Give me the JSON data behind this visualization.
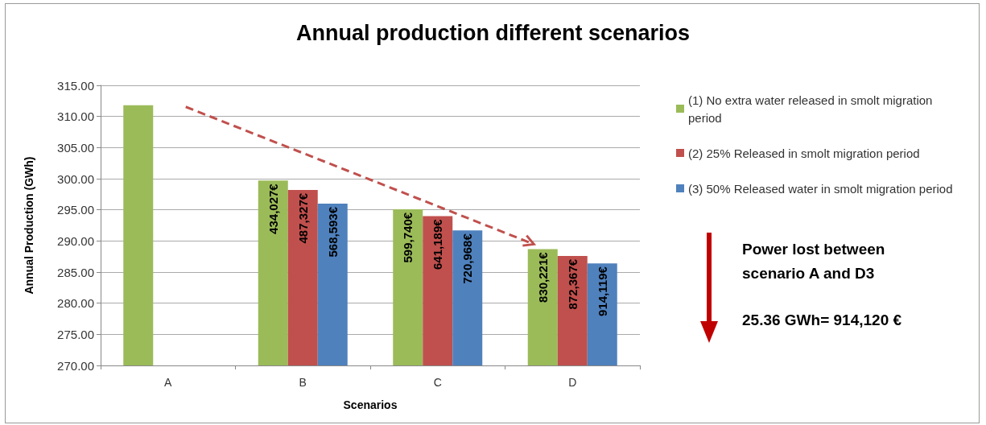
{
  "chart_data": {
    "type": "bar",
    "title": "Annual production different scenarios",
    "xlabel": "Scenarios",
    "ylabel": "Annual Production (GWh)",
    "categories": [
      "A",
      "B",
      "C",
      "D"
    ],
    "series": [
      {
        "name": "(1) No extra water released in smolt migration period",
        "color": "#9bbb59",
        "values": [
          311.8,
          299.7,
          295.1,
          288.7
        ]
      },
      {
        "name": "(2) 25% Released in smolt migration period",
        "color": "#c0504d",
        "values": [
          null,
          298.2,
          294.0,
          287.6
        ]
      },
      {
        "name": "(3) 50% Released water in smolt migration period",
        "color": "#4f81bd",
        "values": [
          null,
          296.0,
          291.7,
          286.4
        ]
      }
    ],
    "ylim": [
      270,
      315
    ],
    "yticks": [
      {
        "value": 270,
        "label": "270.00"
      },
      {
        "value": 275,
        "label": "275.00"
      },
      {
        "value": 280,
        "label": "280.00"
      },
      {
        "value": 285,
        "label": "285.00"
      },
      {
        "value": 290,
        "label": "290.00"
      },
      {
        "value": 295,
        "label": "295.00"
      },
      {
        "value": 300,
        "label": "300.00"
      },
      {
        "value": 305,
        "label": "305.00"
      },
      {
        "value": 310,
        "label": "310.00"
      },
      {
        "value": 315,
        "label": "315.00"
      }
    ],
    "grid": "y",
    "legend": "right",
    "annotations": [
      "434,027€",
      "487,327€",
      "568,593€",
      "599,740€",
      "641,189€",
      "720,968€",
      "830,221€",
      "872,367€",
      "914,119€",
      "Power lost between scenario A and D3",
      "25.36 GWh= 914,120 €"
    ]
  }
}
